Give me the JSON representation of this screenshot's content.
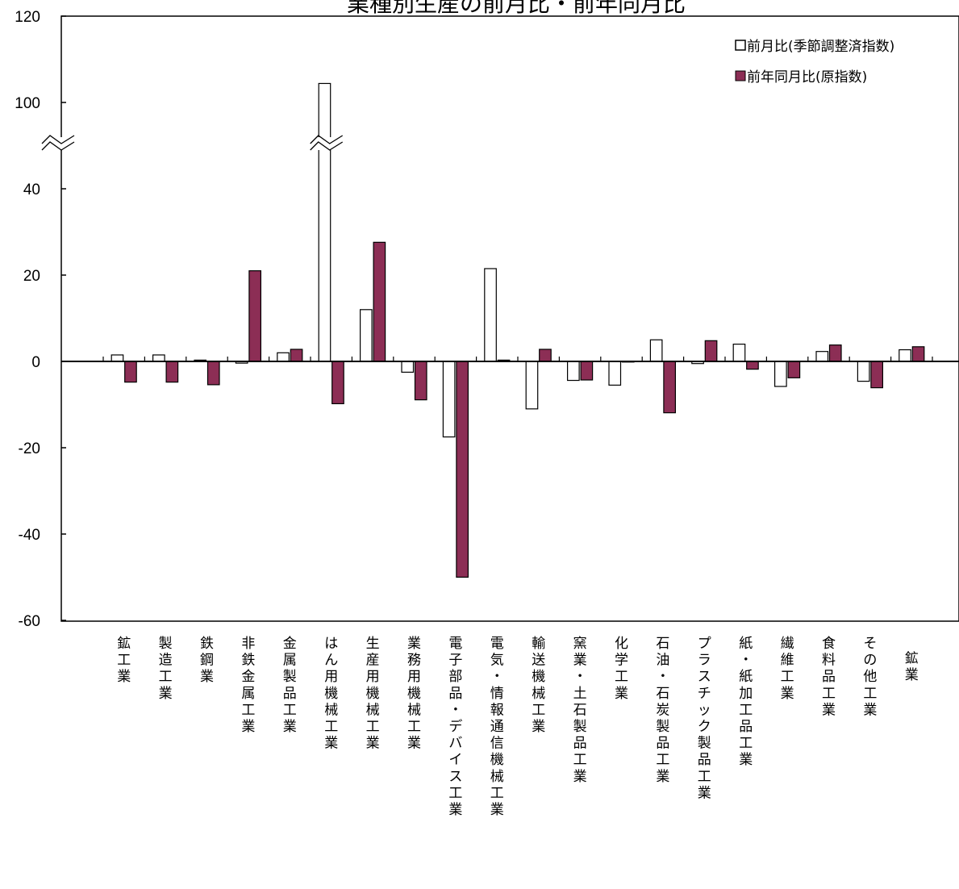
{
  "chart_data": {
    "type": "bar",
    "title": "業種別生産の前月比・前年同月比",
    "categories": [
      "鉱工業",
      "製造工業",
      "鉄鋼業",
      "非鉄金属工業",
      "金属製品工業",
      "はん用機械工業",
      "生産用機械工業",
      "業務用機械工業",
      "電子部品・デバイス工業",
      "電気・情報通信機械工業",
      "輸送機械工業",
      "窯業・土石製品工業",
      "化学工業",
      "石油・石炭製品工業",
      "プラスチック製品工業",
      "紙・紙加工品工業",
      "繊維工業",
      "食料品工業",
      "その他工業",
      "鉱業"
    ],
    "series": [
      {
        "name": "前月比(季節調整済指数)",
        "fill": "#ffffff",
        "stroke": "#000000",
        "values": [
          1.5,
          1.5,
          0.3,
          -0.4,
          2.0,
          104.4,
          12.0,
          -2.5,
          -17.5,
          21.5,
          -11.0,
          -4.4,
          -5.5,
          5.0,
          -0.5,
          4.0,
          -5.8,
          2.3,
          -4.6,
          2.7
        ]
      },
      {
        "name": "前年同月比(原指数)",
        "fill": "#8c2e55",
        "stroke": "#000000",
        "values": [
          -4.8,
          -4.8,
          -5.4,
          21.0,
          2.8,
          -9.8,
          27.6,
          -8.9,
          -50.0,
          0.3,
          2.8,
          -4.3,
          0.0,
          -11.9,
          4.8,
          -1.8,
          -3.8,
          3.8,
          -6.1,
          3.4
        ]
      }
    ],
    "yticks": [
      "120",
      "100",
      "40",
      "20",
      "0",
      "-20",
      "-40",
      "-60"
    ],
    "ylim": [
      -60,
      120
    ],
    "axis_break": {
      "lower_max": 40,
      "upper_min": 100
    },
    "legend_position": "top-right",
    "grid": false
  }
}
